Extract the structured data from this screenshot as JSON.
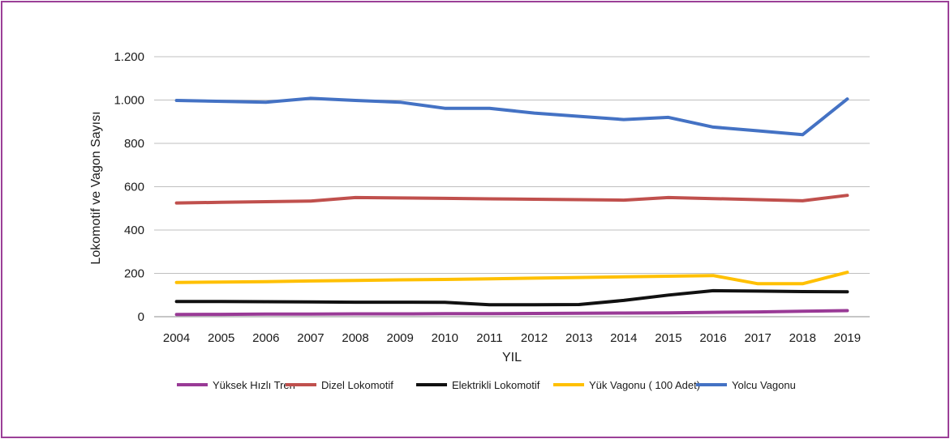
{
  "chart_data": {
    "type": "line",
    "title": "",
    "xlabel": "YIL",
    "ylabel": "Lokomotif ve Vagon Sayısı",
    "ylim": [
      0,
      1200
    ],
    "yticks": [
      0,
      200,
      400,
      600,
      800,
      1000,
      1200
    ],
    "ytick_labels": [
      "0",
      "200",
      "400",
      "600",
      "800",
      "1.000",
      "1.200"
    ],
    "categories": [
      "2004",
      "2005",
      "2006",
      "2007",
      "2008",
      "2009",
      "2010",
      "2011",
      "2012",
      "2013",
      "2014",
      "2015",
      "2016",
      "2017",
      "2018",
      "2019"
    ],
    "grid": "horizontal",
    "legend_position": "bottom",
    "series": [
      {
        "name": "Yüksek Hızlı Tren",
        "color": "#993a96",
        "values": [
          10,
          11,
          12,
          12,
          13,
          13,
          14,
          14,
          15,
          16,
          17,
          18,
          20,
          22,
          25,
          28
        ]
      },
      {
        "name": "Dizel Lokomotif",
        "color": "#c0504d",
        "values": [
          525,
          528,
          531,
          534,
          550,
          548,
          546,
          544,
          542,
          540,
          538,
          550,
          545,
          540,
          535,
          560
        ]
      },
      {
        "name": "Elektrikli Lokomotif",
        "color": "#111111",
        "values": [
          70,
          70,
          69,
          68,
          67,
          67,
          66,
          55,
          55,
          56,
          75,
          100,
          120,
          118,
          116,
          115
        ]
      },
      {
        "name": "Yük Vagonu ( 100 Adet)",
        "color": "#ffc000",
        "values": [
          158,
          160,
          162,
          165,
          167,
          170,
          172,
          175,
          178,
          181,
          184,
          187,
          190,
          152,
          152,
          205
        ]
      },
      {
        "name": "Yolcu  Vagonu",
        "color": "#4472c4",
        "values": [
          998,
          994,
          990,
          1008,
          998,
          990,
          962,
          962,
          940,
          925,
          910,
          920,
          875,
          858,
          840,
          1005
        ]
      }
    ]
  }
}
